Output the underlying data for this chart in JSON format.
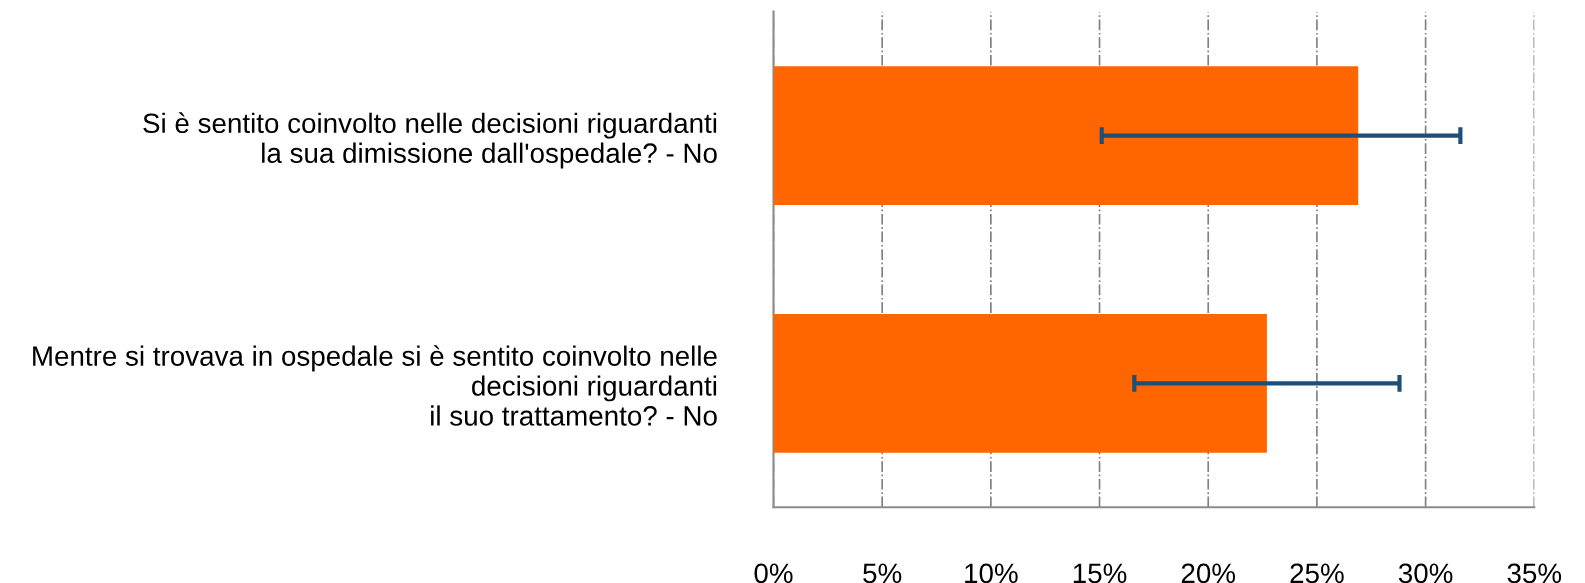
{
  "chart_data": {
    "type": "bar",
    "orientation": "horizontal",
    "categories": [
      "Si è sentito coinvolto nelle decisioni riguardanti la sua dimissione dall'ospedale? - No",
      "Mentre si trovava in ospedale si è sentito coinvolto nelle decisioni riguardanti il suo trattamento? - No"
    ],
    "values": [
      26.9,
      22.7
    ],
    "errors": [
      [
        15.1,
        31.6
      ],
      [
        16.6,
        28.8
      ]
    ],
    "color": "#ff6600",
    "xlim": [
      0,
      35
    ],
    "xticks": [
      {
        "value": 0,
        "label": "0%"
      },
      {
        "value": 5,
        "label": "5%"
      },
      {
        "value": 10,
        "label": "10%"
      },
      {
        "value": 15,
        "label": "15%"
      },
      {
        "value": 20,
        "label": "20%"
      },
      {
        "value": 25,
        "label": "25%"
      },
      {
        "value": 30,
        "label": "30%"
      },
      {
        "value": 35,
        "label": "35%"
      }
    ],
    "grid": "x"
  }
}
